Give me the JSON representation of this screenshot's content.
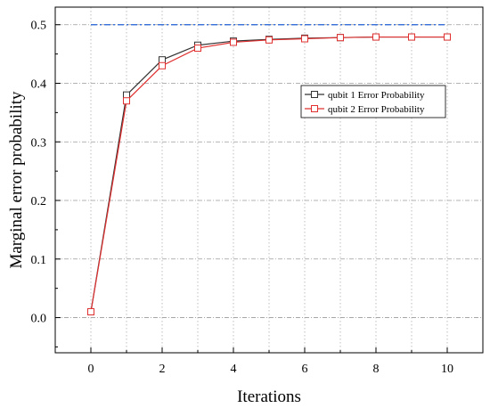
{
  "chart_data": {
    "type": "line",
    "xlabel": "Iterations",
    "ylabel": "Marginal error probability",
    "xlim": [
      -1,
      11
    ],
    "ylim": [
      -0.06,
      0.53
    ],
    "x_ticks": [
      0,
      2,
      4,
      6,
      8,
      10
    ],
    "y_ticks": [
      0.0,
      0.1,
      0.2,
      0.3,
      0.4,
      0.5
    ],
    "grid": true,
    "legend_position": "right",
    "reference_line": {
      "y": 0.5,
      "x_range": [
        0,
        10
      ],
      "color": "#1f5fd6"
    },
    "series": [
      {
        "name": "qubit 1 Error Probability",
        "color": "#333333",
        "marker": "square",
        "x": [
          0,
          1,
          2,
          3,
          4,
          5,
          6,
          7,
          8,
          9,
          10
        ],
        "values": [
          0.01,
          0.38,
          0.44,
          0.465,
          0.472,
          0.475,
          0.477,
          0.478,
          0.479,
          0.479,
          0.479
        ]
      },
      {
        "name": "qubit 2 Error Probability",
        "color": "#e03030",
        "marker": "square",
        "x": [
          0,
          1,
          2,
          3,
          4,
          5,
          6,
          7,
          8,
          9,
          10
        ],
        "values": [
          0.01,
          0.37,
          0.43,
          0.46,
          0.47,
          0.474,
          0.476,
          0.478,
          0.479,
          0.479,
          0.479
        ]
      }
    ]
  }
}
